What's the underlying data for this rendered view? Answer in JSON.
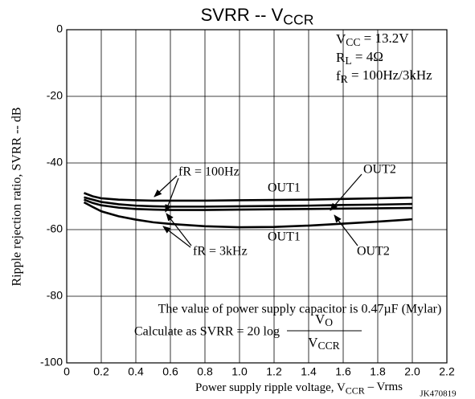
{
  "chart_data": {
    "type": "line",
    "title": [
      {
        "text": "SVRR -- V"
      },
      {
        "text": "CCR",
        "sub": true
      }
    ],
    "x_label": [
      {
        "text": "Power supply ripple voltage, V"
      },
      {
        "text": "CCR",
        "sub": true
      },
      {
        "text": " – Vrms"
      }
    ],
    "y_label": "Ripple rejection ratio, SVRR -- dB",
    "code": "JK470819",
    "xlim": [
      0,
      2.2
    ],
    "ylim": [
      -100,
      0
    ],
    "xticks": [
      0,
      0.2,
      0.4,
      0.6,
      0.8,
      {
        "value": 1,
        "label": "1.0"
      },
      1.2,
      1.4,
      1.6,
      1.8,
      {
        "value": 2,
        "label": "2.0"
      },
      2.2
    ],
    "yticks": [
      0,
      -20,
      -40,
      -60,
      -80,
      -100
    ],
    "grid": true,
    "x": [
      0.1,
      0.15,
      0.2,
      0.3,
      0.4,
      0.5,
      0.6,
      0.8,
      1.0,
      1.2,
      1.4,
      1.6,
      1.8,
      2.0
    ],
    "series": [
      {
        "color": "#000000",
        "values": [
          -49,
          -50,
          -50.6,
          -51,
          -51.2,
          -51.3,
          -51.3,
          -51.3,
          -51.2,
          -51.1,
          -51,
          -50.8,
          -50.6,
          -50.4
        ]
      },
      {
        "color": "#000000",
        "values": [
          -50.3,
          -51,
          -51.7,
          -52.4,
          -52.8,
          -53,
          -53.1,
          -53.1,
          -53,
          -52.9,
          -52.8,
          -52.6,
          -52.5,
          -52.3
        ]
      },
      {
        "color": "#000000",
        "values": [
          -51,
          -52,
          -52.7,
          -53.4,
          -53.8,
          -54,
          -54.1,
          -54.1,
          -54,
          -53.9,
          -53.8,
          -53.7,
          -53.6,
          -53.5
        ]
      },
      {
        "color": "#000000",
        "values": [
          -51.8,
          -53.2,
          -54.5,
          -56,
          -57,
          -57.8,
          -58.3,
          -59,
          -59.3,
          -59.2,
          -58.8,
          -58.2,
          -57.6,
          -56.9
        ]
      }
    ],
    "conditions": [
      [
        {
          "text": "V"
        },
        {
          "text": "CC",
          "sub": true
        },
        {
          "text": " = 13.2V"
        }
      ],
      [
        {
          "text": "R"
        },
        {
          "text": "L",
          "sub": true
        },
        {
          "text": " = 4Ω"
        }
      ],
      [
        {
          "text": "f"
        },
        {
          "text": "R",
          "sub": true
        },
        {
          "text": " = 100Hz/3kHz"
        }
      ]
    ],
    "curve_labels": [
      "fR = 100Hz",
      "OUT1",
      "OUT2",
      "OUT1",
      "fR = 3kHz",
      "OUT2"
    ],
    "note": "The value of power supply capacitor is 0.47µF (Mylar)",
    "formula": "Calculate as SVRR = 20 log",
    "numerator": [
      {
        "text": "V"
      },
      {
        "text": "O",
        "sub": true
      }
    ],
    "denominator": [
      {
        "text": "V"
      },
      {
        "text": "CCR",
        "sub": true
      }
    ]
  }
}
